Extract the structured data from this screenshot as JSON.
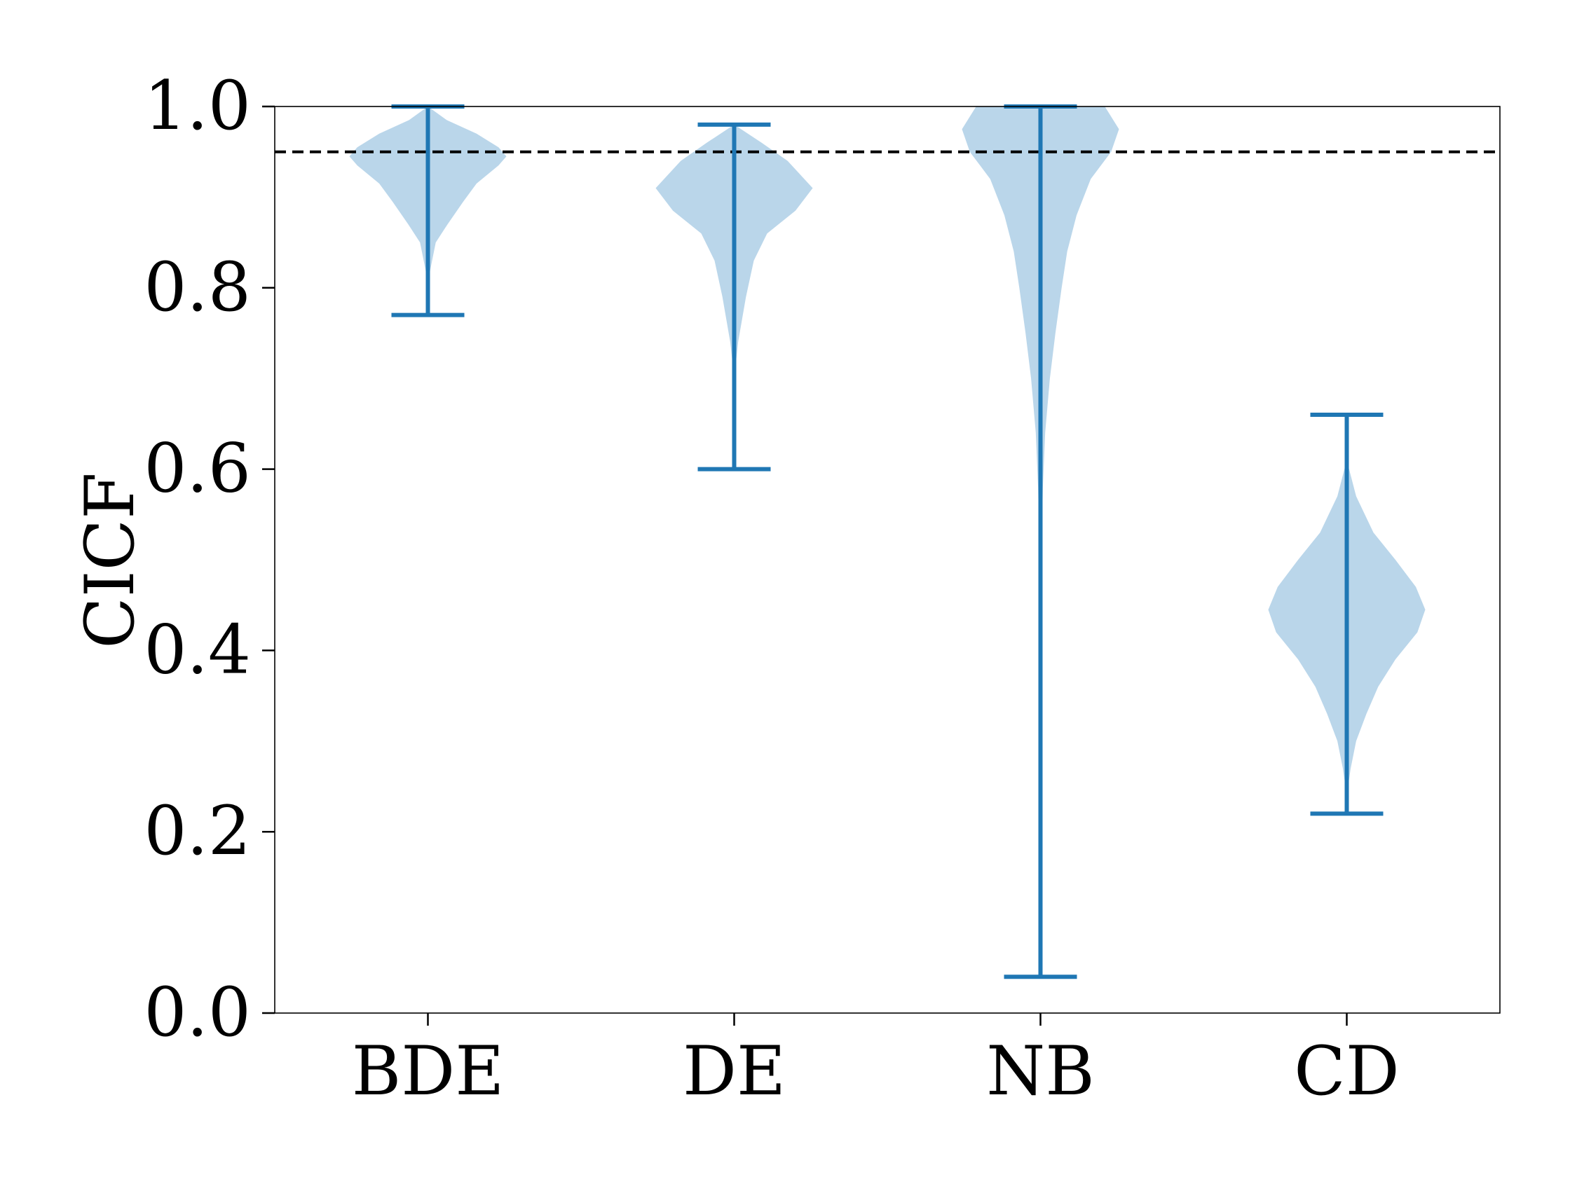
{
  "chart_data": {
    "type": "violin",
    "title": "",
    "xlabel": "",
    "ylabel": "CICF",
    "ylim": [
      0.0,
      1.0
    ],
    "yticks": [
      "0.0",
      "0.2",
      "0.4",
      "0.6",
      "0.8",
      "1.0"
    ],
    "categories": [
      "BDE",
      "DE",
      "NB",
      "CD"
    ],
    "reference_line": {
      "y": 0.95,
      "style": "dashed",
      "color": "#000000"
    },
    "colors": {
      "body": "#bad6ea",
      "lines": "#1f77b4"
    },
    "series": [
      {
        "name": "BDE",
        "min": 0.77,
        "max": 1.0,
        "density": [
          [
            1.0,
            0.0
          ],
          [
            0.985,
            0.24
          ],
          [
            0.97,
            0.62
          ],
          [
            0.955,
            0.9
          ],
          [
            0.945,
            1.0
          ],
          [
            0.935,
            0.9
          ],
          [
            0.915,
            0.62
          ],
          [
            0.895,
            0.45
          ],
          [
            0.87,
            0.25
          ],
          [
            0.85,
            0.1
          ],
          [
            0.82,
            0.03
          ],
          [
            0.8,
            0.0
          ]
        ]
      },
      {
        "name": "DE",
        "min": 0.6,
        "max": 0.98,
        "density": [
          [
            0.98,
            0.0
          ],
          [
            0.96,
            0.35
          ],
          [
            0.94,
            0.68
          ],
          [
            0.91,
            1.0
          ],
          [
            0.885,
            0.78
          ],
          [
            0.86,
            0.42
          ],
          [
            0.83,
            0.25
          ],
          [
            0.79,
            0.15
          ],
          [
            0.74,
            0.05
          ],
          [
            0.7,
            0.0
          ]
        ]
      },
      {
        "name": "NB",
        "min": 0.04,
        "max": 1.0,
        "density": [
          [
            1.0,
            0.82
          ],
          [
            0.975,
            1.0
          ],
          [
            0.95,
            0.9
          ],
          [
            0.92,
            0.64
          ],
          [
            0.88,
            0.46
          ],
          [
            0.84,
            0.34
          ],
          [
            0.8,
            0.27
          ],
          [
            0.75,
            0.19
          ],
          [
            0.7,
            0.12
          ],
          [
            0.64,
            0.06
          ],
          [
            0.58,
            0.03
          ],
          [
            0.5,
            0.01
          ],
          [
            0.4,
            0.0
          ]
        ]
      },
      {
        "name": "CD",
        "min": 0.22,
        "max": 0.66,
        "density": [
          [
            0.61,
            0.0
          ],
          [
            0.57,
            0.12
          ],
          [
            0.53,
            0.34
          ],
          [
            0.5,
            0.62
          ],
          [
            0.47,
            0.88
          ],
          [
            0.445,
            1.0
          ],
          [
            0.42,
            0.9
          ],
          [
            0.39,
            0.62
          ],
          [
            0.36,
            0.4
          ],
          [
            0.33,
            0.25
          ],
          [
            0.3,
            0.12
          ],
          [
            0.27,
            0.05
          ],
          [
            0.24,
            0.0
          ]
        ]
      }
    ]
  }
}
